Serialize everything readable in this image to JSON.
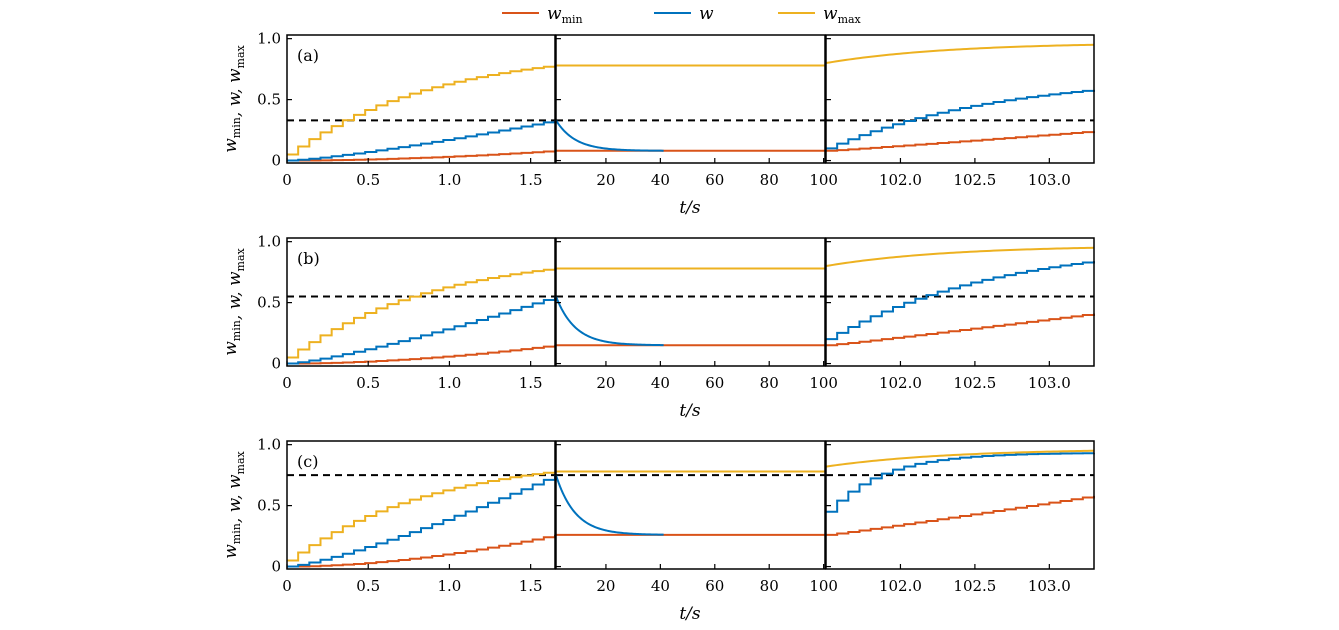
{
  "colors": {
    "w_min": "#d95319",
    "w": "#0072bd",
    "w_max": "#edb120",
    "threshold": "#000000"
  },
  "legend": [
    {
      "series": "w_min",
      "main": "w",
      "sub": "min"
    },
    {
      "series": "w",
      "main": "w",
      "sub": ""
    },
    {
      "series": "w_max",
      "main": "w",
      "sub": "max"
    }
  ],
  "chart_data": [
    {
      "type": "line",
      "panel": "(a)",
      "ylabel_parts": [
        "w",
        "min",
        ", ",
        "w",
        "",
        ", ",
        "w",
        "max"
      ],
      "yticks": [
        0,
        0.5,
        1.0
      ],
      "ytick_labels": [
        "0",
        "0.5",
        "1.0"
      ],
      "ylim": [
        -0.02,
        1.03
      ],
      "xlabel": "t/s",
      "threshold": 0.33,
      "segments": [
        {
          "xlim": [
            0,
            1.65
          ],
          "xticks": [
            0,
            0.5,
            1.0,
            1.5
          ],
          "xtick_labels": [
            "0",
            "0.5",
            "1.0",
            "1.5"
          ]
        },
        {
          "xlim": [
            1.65,
            100.5
          ],
          "xticks": [
            20,
            40,
            60,
            80,
            100
          ],
          "xtick_labels": [
            "20",
            "40",
            "60",
            "80",
            "100"
          ]
        },
        {
          "xlim": [
            101.5,
            103.3
          ],
          "xticks": [
            102.0,
            102.5,
            103.0
          ],
          "xtick_labels": [
            "102.0",
            "102.5",
            "103.0"
          ]
        }
      ],
      "series": {
        "w_min": {
          "s1_end": 0.08,
          "s2_level": 0.08,
          "s3_start": 0.08,
          "s3_end": 0.24
        },
        "w": {
          "s1_end": 0.33,
          "s2_level": 0.08,
          "s3_start": 0.1,
          "s3_end": 0.58
        },
        "w_max": {
          "s1_start": 0.05,
          "s1_end": 0.78,
          "s2_level": 0.78,
          "s3_start": 0.8,
          "s3_end": 0.95
        }
      }
    },
    {
      "type": "line",
      "panel": "(b)",
      "ylabel_parts": [
        "w",
        "min",
        ", ",
        "w",
        "",
        ", ",
        "w",
        "max"
      ],
      "yticks": [
        0,
        0.5,
        1.0
      ],
      "ytick_labels": [
        "0",
        "0.5",
        "1.0"
      ],
      "ylim": [
        -0.02,
        1.03
      ],
      "xlabel": "t/s",
      "threshold": 0.55,
      "segments": [
        {
          "xlim": [
            0,
            1.65
          ],
          "xticks": [
            0,
            0.5,
            1.0,
            1.5
          ],
          "xtick_labels": [
            "0",
            "0.5",
            "1.0",
            "1.5"
          ]
        },
        {
          "xlim": [
            1.65,
            100.5
          ],
          "xticks": [
            20,
            40,
            60,
            80,
            100
          ],
          "xtick_labels": [
            "20",
            "40",
            "60",
            "80",
            "100"
          ]
        },
        {
          "xlim": [
            101.5,
            103.3
          ],
          "xticks": [
            102.0,
            102.5,
            103.0
          ],
          "xtick_labels": [
            "102.0",
            "102.5",
            "103.0"
          ]
        }
      ],
      "series": {
        "w_min": {
          "s1_end": 0.15,
          "s2_level": 0.15,
          "s3_start": 0.15,
          "s3_end": 0.41
        },
        "w": {
          "s1_end": 0.55,
          "s2_level": 0.15,
          "s3_start": 0.2,
          "s3_end": 0.84
        },
        "w_max": {
          "s1_start": 0.05,
          "s1_end": 0.78,
          "s2_level": 0.78,
          "s3_start": 0.8,
          "s3_end": 0.95
        }
      }
    },
    {
      "type": "line",
      "panel": "(c)",
      "ylabel_parts": [
        "w",
        "min",
        ", ",
        "w",
        "",
        ", ",
        "w",
        "max"
      ],
      "yticks": [
        0,
        0.5,
        1.0
      ],
      "ytick_labels": [
        "0",
        "0.5",
        "1.0"
      ],
      "ylim": [
        -0.02,
        1.03
      ],
      "xlabel": "t/s",
      "threshold": 0.75,
      "segments": [
        {
          "xlim": [
            0,
            1.65
          ],
          "xticks": [
            0,
            0.5,
            1.0,
            1.5
          ],
          "xtick_labels": [
            "0",
            "0.5",
            "1.0",
            "1.5"
          ]
        },
        {
          "xlim": [
            1.65,
            100.5
          ],
          "xticks": [
            20,
            40,
            60,
            80,
            100
          ],
          "xtick_labels": [
            "20",
            "40",
            "60",
            "80",
            "100"
          ]
        },
        {
          "xlim": [
            101.5,
            103.3
          ],
          "xticks": [
            102.0,
            102.5,
            103.0
          ],
          "xtick_labels": [
            "102.0",
            "102.5",
            "103.0"
          ]
        }
      ],
      "series": {
        "w_min": {
          "s1_end": 0.26,
          "s2_level": 0.26,
          "s3_start": 0.26,
          "s3_end": 0.58
        },
        "w": {
          "s1_end": 0.75,
          "s2_level": 0.26,
          "s3_start": 0.45,
          "s3_end": 0.93
        },
        "w_max": {
          "s1_start": 0.05,
          "s1_end": 0.78,
          "s2_level": 0.78,
          "s3_start": 0.82,
          "s3_end": 0.95
        }
      }
    }
  ]
}
